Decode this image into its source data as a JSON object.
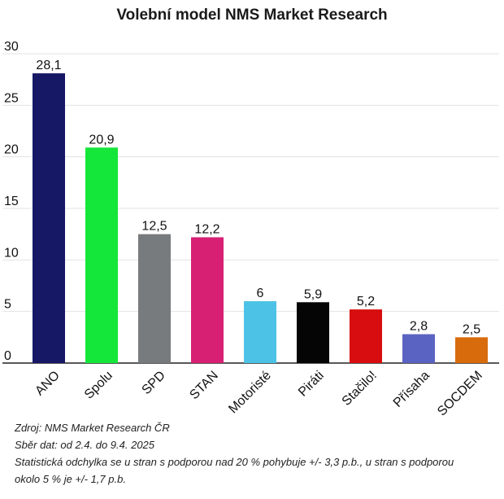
{
  "chart_data": {
    "type": "bar",
    "title": "Volební model NMS Market Research",
    "categories": [
      "ANO",
      "Spolu",
      "SPD",
      "STAN",
      "Motoristé",
      "Piráti",
      "Stačilo!",
      "Přísaha",
      "SOCDEM"
    ],
    "values": [
      28.1,
      20.9,
      12.5,
      12.2,
      6,
      5.9,
      5.2,
      2.8,
      2.5
    ],
    "value_labels": [
      "28,1",
      "20,9",
      "12,5",
      "12,2",
      "6",
      "5,9",
      "5,2",
      "2,8",
      "2,5"
    ],
    "colors": [
      "#161866",
      "#14e63a",
      "#777b7e",
      "#d72074",
      "#4cc3e6",
      "#050505",
      "#d80d0f",
      "#5b63c2",
      "#d86c0d"
    ],
    "yticks": [
      0,
      5,
      10,
      15,
      20,
      25,
      30
    ],
    "ylim": [
      0,
      30
    ],
    "xlabel": "",
    "ylabel": "",
    "grid": true
  },
  "notes": {
    "source": "Zdroj: NMS Market Research ČR",
    "dates": "Sběr dat: od 2.4. do 9.4. 2025",
    "error_line1": "Statistická odchylka se u stran s podporou nad 20 % pohybuje +/- 3,3 p.b., u stran s podporou",
    "error_line2": "okolo 5 % je +/- 1,7 p.b."
  }
}
